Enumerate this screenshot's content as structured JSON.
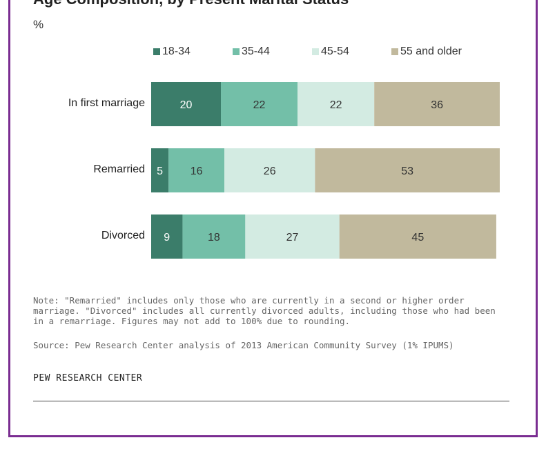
{
  "title": "Age Composition, by Present Marital Status",
  "unit": "%",
  "note": "Note: \"Remarried\" includes only those who are currently in a second or higher order marriage. \"Divorced\" includes all currently divorced adults, including those who had been in a remarriage. Figures may not add to 100% due to rounding.",
  "source": "Source: Pew Research Center analysis of 2013 American Community Survey (1% IPUMS)",
  "org": "PEW RESEARCH CENTER",
  "colors": {
    "18-34": "#3b7d6a",
    "35-44": "#73bfa8",
    "45-54": "#d3ebe2",
    "55 and older": "#c1b99d",
    "frame": "#7a2d91"
  },
  "chart_data": {
    "type": "bar",
    "orientation": "horizontal",
    "stacked": true,
    "unit": "%",
    "legend_position": "top",
    "categories": [
      "In first marriage",
      "Remarried",
      "Divorced"
    ],
    "series": [
      {
        "name": "18-34",
        "values": [
          20,
          5,
          9
        ]
      },
      {
        "name": "35-44",
        "values": [
          22,
          16,
          18
        ]
      },
      {
        "name": "45-54",
        "values": [
          22,
          26,
          27
        ]
      },
      {
        "name": "55 and older",
        "values": [
          36,
          53,
          45
        ]
      }
    ]
  }
}
